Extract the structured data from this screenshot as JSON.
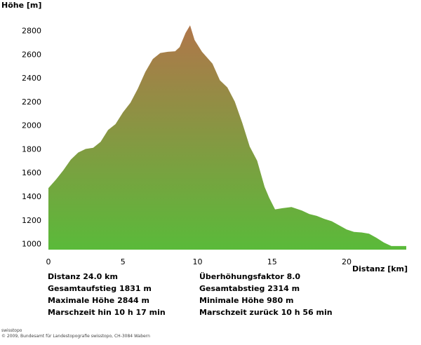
{
  "chart_data": {
    "type": "area",
    "ylabel": "Höhe [m]",
    "xlabel": "Distanz [km]",
    "xlim": [
      0,
      24.0
    ],
    "ylim": [
      950,
      2880
    ],
    "xticks": [
      0,
      5,
      10,
      15,
      20
    ],
    "yticks": [
      1000,
      1200,
      1400,
      1600,
      1800,
      2000,
      2200,
      2400,
      2600,
      2800
    ],
    "grid": false,
    "fill_colors": {
      "top": "#b0764a",
      "bottom": "#5aba3a"
    },
    "x": [
      0,
      0.5,
      1.0,
      1.5,
      2.0,
      2.5,
      3.0,
      3.5,
      4.0,
      4.5,
      5.0,
      5.5,
      6.0,
      6.5,
      7.0,
      7.5,
      8.0,
      8.5,
      8.8,
      9.2,
      9.5,
      9.8,
      10.3,
      11.0,
      11.5,
      12.0,
      12.5,
      13.0,
      13.5,
      14.0,
      14.5,
      14.8,
      15.2,
      15.7,
      16.3,
      17.0,
      17.5,
      18.0,
      18.5,
      19.0,
      19.5,
      20.0,
      20.5,
      21.0,
      21.5,
      22.0,
      22.5,
      23.0,
      23.5,
      24.0
    ],
    "y": [
      1470,
      1540,
      1620,
      1710,
      1770,
      1800,
      1810,
      1860,
      1960,
      2010,
      2110,
      2190,
      2310,
      2450,
      2560,
      2610,
      2620,
      2625,
      2660,
      2780,
      2844,
      2720,
      2620,
      2520,
      2380,
      2320,
      2200,
      2020,
      1820,
      1700,
      1480,
      1390,
      1290,
      1300,
      1310,
      1280,
      1250,
      1235,
      1210,
      1190,
      1155,
      1120,
      1100,
      1095,
      1085,
      1050,
      1010,
      980,
      980,
      980
    ]
  },
  "stats": {
    "distanz": "Distanz 24.0 km",
    "gesamtaufstieg": "Gesamtaufstieg  1831 m",
    "maximale_hoehe": "Maximale Höhe  2844 m",
    "marschzeit_hin": "Marschzeit hin  10 h 17 min",
    "ueberhoehungsfaktor": "Überhöhungsfaktor 8.0",
    "gesamtabstieg": "Gesamtabstieg  2314 m",
    "minimale_hoehe": "Minimale Höhe  980 m",
    "marschzeit_zurueck": "Marschzeit zurück  10 h 56 min"
  },
  "copyright": {
    "line1": "swisstopo",
    "line2": "© 2009, Bundesamt für Landestopografie swisstopo, CH-3084 Wabern"
  }
}
